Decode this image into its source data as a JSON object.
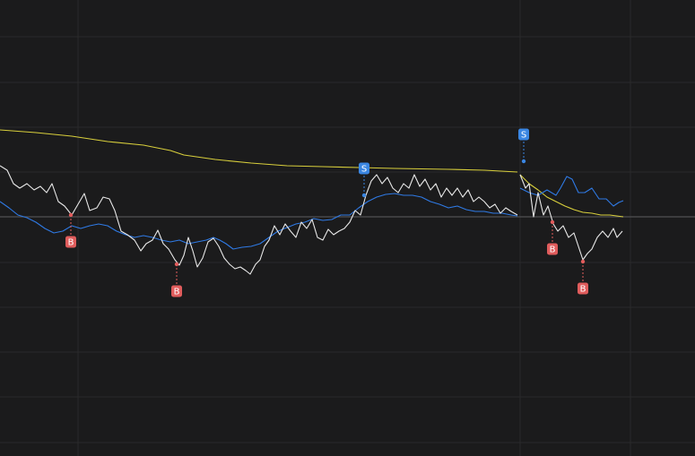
{
  "chart_data": {
    "type": "line",
    "xlim": [
      0,
      775
    ],
    "ylim": [
      509,
      0
    ],
    "xticks": [
      87,
      580,
      703
    ],
    "yticks": [
      41,
      92,
      142,
      192,
      242,
      293,
      343,
      393,
      443,
      494
    ],
    "baseline": 242,
    "grid": true,
    "series": [
      {
        "color": "#d8cf3c",
        "x": [
          0,
          40,
          80,
          120,
          160,
          190,
          205,
          240,
          280,
          320,
          360,
          400,
          440,
          500,
          540,
          577,
          578.5,
          580,
          590,
          600,
          610,
          620,
          630,
          640,
          650,
          660,
          670,
          680,
          695
        ],
        "values": [
          145,
          148,
          152,
          158,
          162,
          168,
          173,
          178,
          182,
          185,
          186,
          187,
          188,
          189,
          190,
          192,
          null,
          195,
          205,
          212,
          220,
          225,
          230,
          234,
          237,
          238,
          240,
          240,
          242
        ]
      },
      {
        "color": "#2f7ae5",
        "x": [
          0,
          10,
          20,
          30,
          40,
          50,
          60,
          70,
          80,
          90,
          100,
          110,
          120,
          130,
          140,
          150,
          160,
          170,
          180,
          190,
          200,
          210,
          220,
          230,
          238,
          245,
          252,
          260,
          270,
          280,
          290,
          300,
          310,
          320,
          330,
          340,
          350,
          360,
          370,
          380,
          390,
          400,
          410,
          420,
          430,
          440,
          450,
          460,
          470,
          480,
          490,
          500,
          510,
          520,
          530,
          540,
          550,
          560,
          570,
          577,
          578.5,
          580,
          590,
          600,
          610,
          620,
          625,
          632,
          638,
          645,
          652,
          660,
          668,
          676,
          684,
          690,
          695
        ],
        "values": [
          225,
          232,
          240,
          243,
          248,
          255,
          260,
          258,
          252,
          255,
          252,
          250,
          252,
          258,
          262,
          265,
          263,
          265,
          268,
          270,
          268,
          272,
          270,
          268,
          265,
          268,
          272,
          278,
          276,
          275,
          272,
          265,
          258,
          254,
          250,
          248,
          244,
          246,
          245,
          240,
          240,
          232,
          225,
          220,
          217,
          216,
          218,
          218,
          220,
          225,
          228,
          232,
          230,
          234,
          236,
          236,
          238,
          238,
          240,
          241,
          null,
          210,
          215,
          218,
          212,
          218,
          210,
          197,
          200,
          215,
          215,
          210,
          222,
          222,
          230,
          226,
          224
        ]
      },
      {
        "color": "#e8e8e8",
        "x": [
          0,
          8,
          15,
          22,
          30,
          38,
          45,
          52,
          58,
          65,
          72,
          80,
          87,
          94,
          100,
          108,
          115,
          122,
          128,
          135,
          142,
          150,
          157,
          163,
          170,
          176,
          182,
          188,
          195,
          200,
          205,
          210,
          215,
          220,
          226,
          232,
          238,
          244,
          250,
          256,
          262,
          268,
          274,
          279,
          285,
          290,
          295,
          300,
          306,
          312,
          318,
          324,
          330,
          336,
          342,
          348,
          354,
          360,
          366,
          372,
          378,
          384,
          390,
          396,
          402,
          408,
          414,
          420,
          426,
          432,
          438,
          444,
          450,
          456,
          462,
          468,
          474,
          480,
          486,
          492,
          498,
          504,
          510,
          516,
          522,
          528,
          534,
          540,
          546,
          552,
          558,
          564,
          570,
          577,
          578.5,
          580,
          586,
          590,
          595,
          600,
          606,
          611,
          617,
          622,
          628,
          634,
          640,
          645,
          650,
          655,
          660,
          666,
          672,
          678,
          684,
          688,
          694
        ],
        "values": [
          185,
          190,
          205,
          210,
          205,
          212,
          208,
          215,
          205,
          225,
          230,
          240,
          228,
          216,
          235,
          232,
          220,
          222,
          235,
          258,
          262,
          268,
          280,
          272,
          268,
          257,
          272,
          278,
          290,
          296,
          285,
          265,
          280,
          298,
          288,
          270,
          266,
          275,
          288,
          295,
          300,
          298,
          302,
          306,
          295,
          290,
          275,
          268,
          252,
          262,
          250,
          258,
          265,
          248,
          255,
          245,
          265,
          268,
          256,
          262,
          258,
          255,
          248,
          235,
          240,
          218,
          202,
          195,
          205,
          198,
          210,
          215,
          205,
          210,
          195,
          208,
          200,
          212,
          205,
          220,
          210,
          218,
          210,
          220,
          212,
          225,
          220,
          225,
          232,
          228,
          238,
          232,
          236,
          240,
          null,
          195,
          210,
          205,
          242,
          215,
          240,
          230,
          250,
          258,
          252,
          265,
          260,
          275,
          290,
          283,
          278,
          265,
          258,
          265,
          255,
          265,
          258
        ]
      }
    ],
    "markers": [
      {
        "label": "B",
        "x": 79,
        "y": 240,
        "color": "#e05c5c"
      },
      {
        "label": "B",
        "x": 197,
        "y": 295,
        "color": "#e05c5c"
      },
      {
        "label": "S",
        "x": 406,
        "y": 218,
        "color": "#3a86e2"
      },
      {
        "label": "S",
        "x": 584,
        "y": 180,
        "color": "#3a86e2"
      },
      {
        "label": "B",
        "x": 616,
        "y": 248,
        "color": "#e05c5c"
      },
      {
        "label": "B",
        "x": 650,
        "y": 292,
        "color": "#e05c5c"
      }
    ]
  }
}
